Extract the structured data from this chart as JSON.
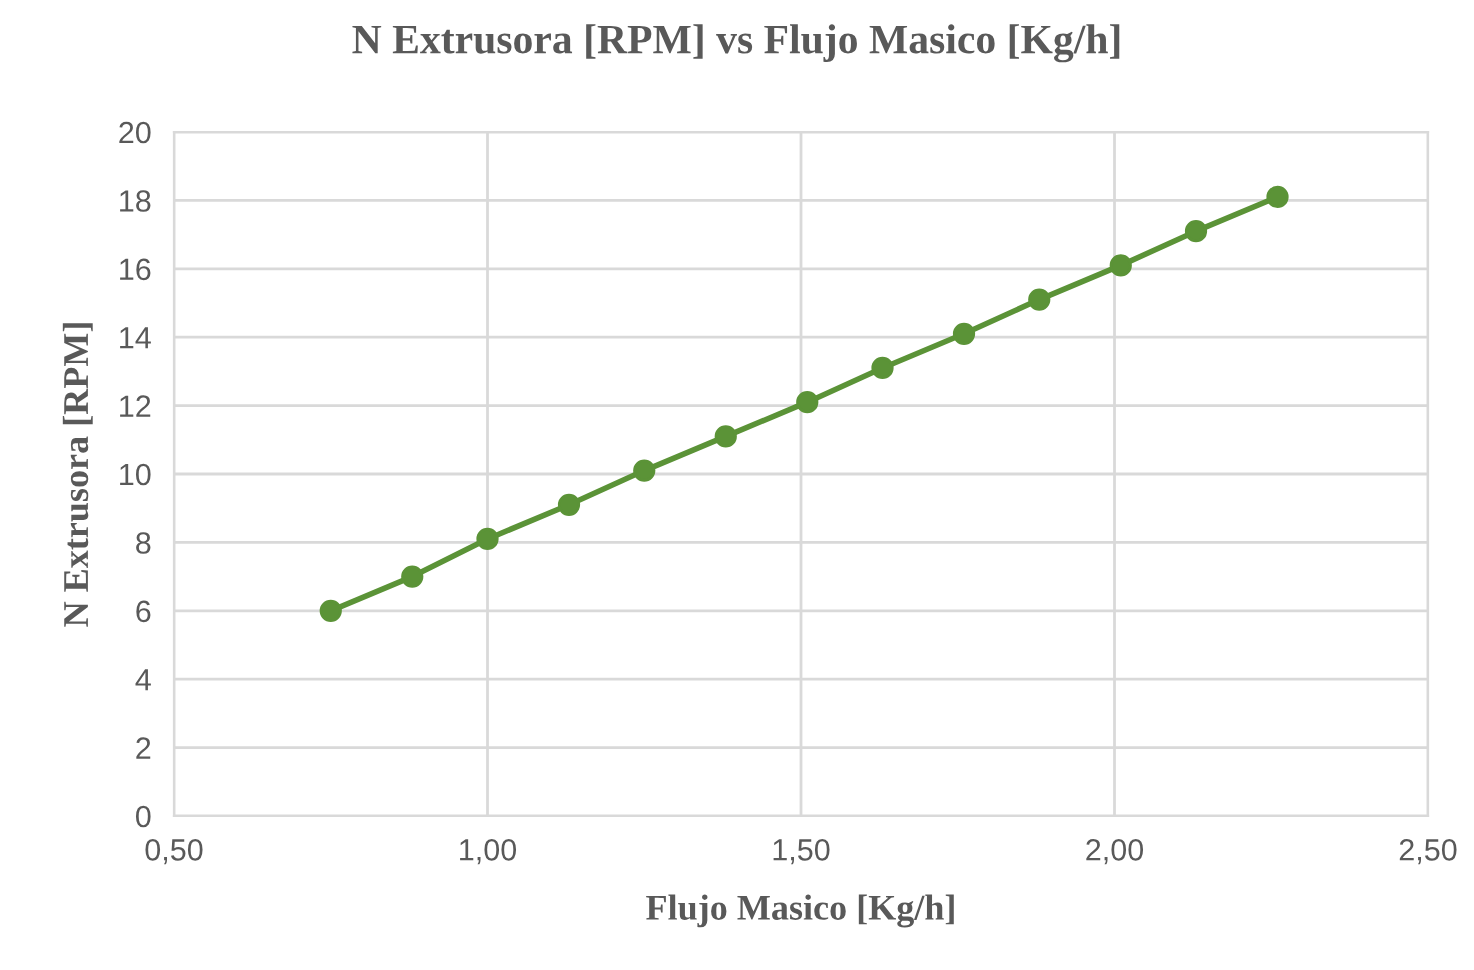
{
  "chart_data": {
    "type": "line",
    "title": "N Extrusora [RPM] vs Flujo Masico [Kg/h]",
    "xlabel": "Flujo Masico [Kg/h]",
    "ylabel": "N Extrusora [RPM]",
    "x": [
      0.75,
      0.88,
      1.0,
      1.13,
      1.25,
      1.38,
      1.51,
      1.63,
      1.76,
      1.88,
      2.01,
      2.13,
      2.26
    ],
    "series": [
      {
        "color": "#5b9337",
        "values": [
          6,
          7,
          8.1,
          9.1,
          10.1,
          11.1,
          12.1,
          13.1,
          14.1,
          15.1,
          16.1,
          17.1,
          18.1
        ]
      }
    ],
    "xlim": [
      0.5,
      2.5
    ],
    "xticks": [
      {
        "value": 0.5,
        "label": "0,50"
      },
      {
        "value": 1.0,
        "label": "1,00"
      },
      {
        "value": 1.5,
        "label": "1,50"
      },
      {
        "value": 2.0,
        "label": "2,00"
      },
      {
        "value": 2.5,
        "label": "2,50"
      }
    ],
    "ylim": [
      0,
      20
    ],
    "yticks": [
      0,
      2,
      4,
      6,
      8,
      10,
      12,
      14,
      16,
      18,
      20
    ],
    "grid": true,
    "marker": "circle",
    "line_style": "solid"
  }
}
